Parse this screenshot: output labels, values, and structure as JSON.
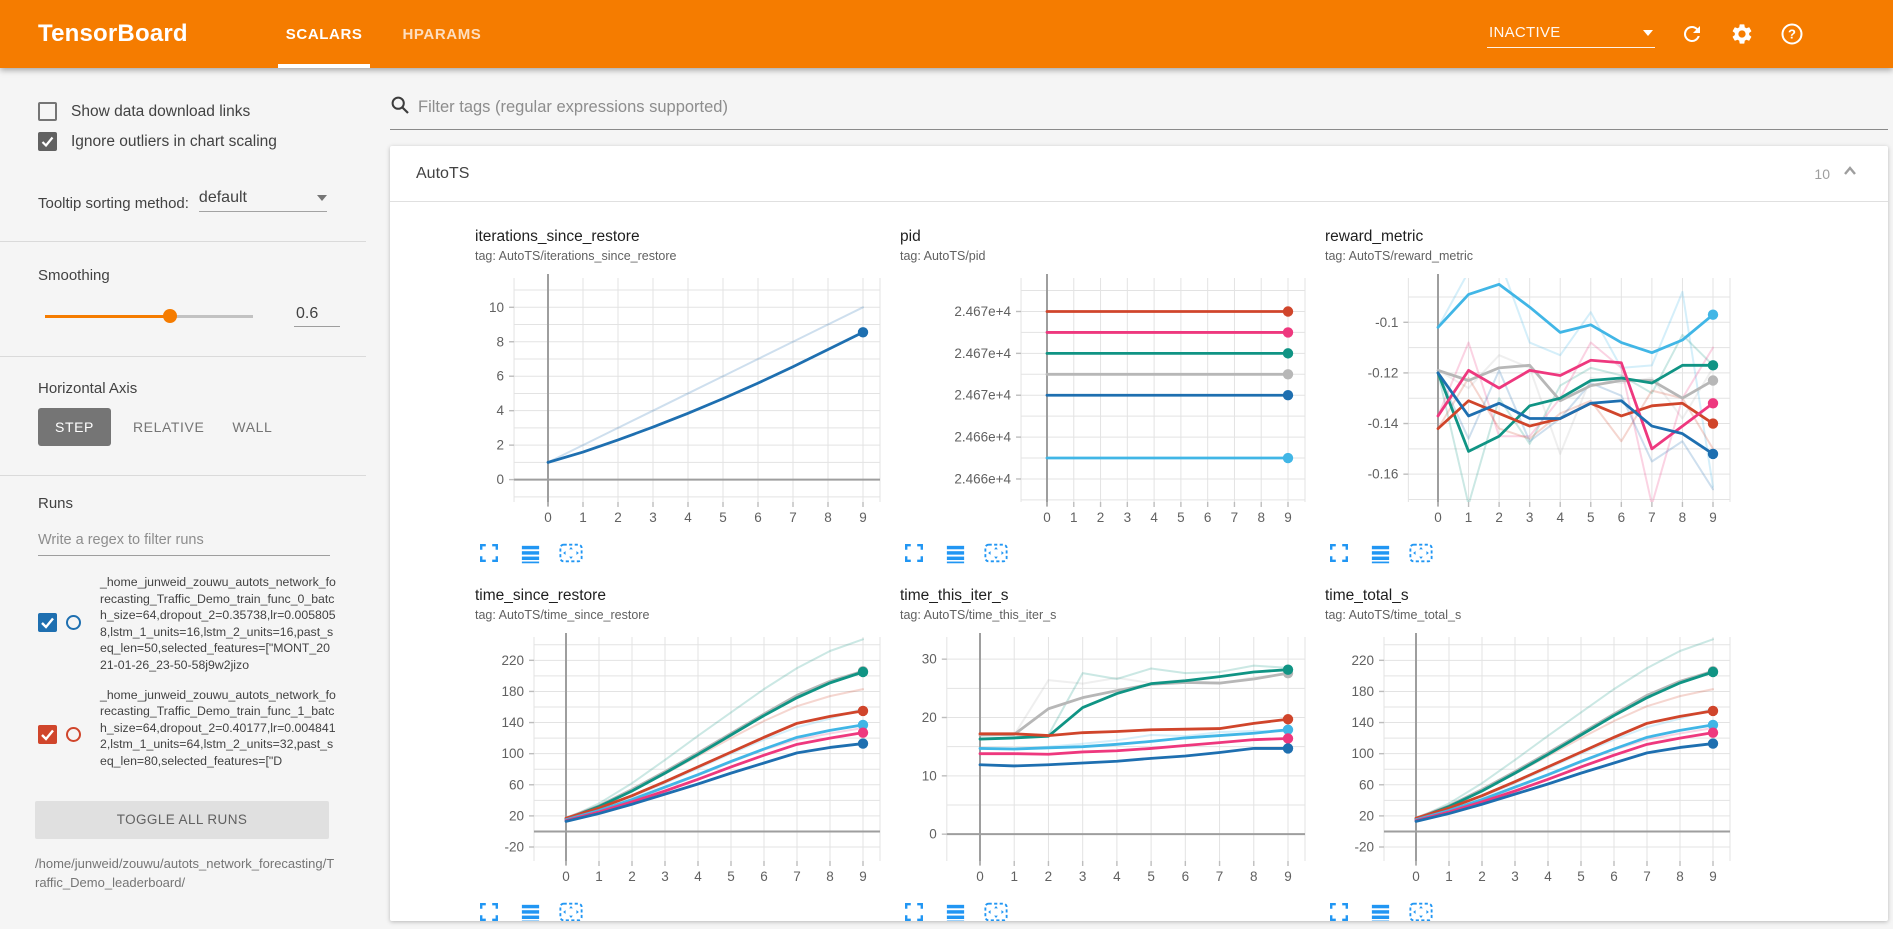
{
  "header": {
    "title": "TensorBoard",
    "tabs": [
      {
        "label": "SCALARS",
        "active": true
      },
      {
        "label": "HPARAMS",
        "active": false
      }
    ],
    "status_dropdown": "INACTIVE",
    "icons": [
      "refresh-icon",
      "gear-icon",
      "help-icon"
    ]
  },
  "sidebar": {
    "checkboxes": [
      {
        "label": "Show data download links",
        "checked": false
      },
      {
        "label": "Ignore outliers in chart scaling",
        "checked": true
      }
    ],
    "tooltip_sorting": {
      "label": "Tooltip sorting method:",
      "value": "default"
    },
    "smoothing": {
      "label": "Smoothing",
      "value": "0.6",
      "percent": 60
    },
    "horizontal_axis": {
      "label": "Horizontal Axis",
      "options": [
        "STEP",
        "RELATIVE",
        "WALL"
      ],
      "selected": "STEP"
    },
    "runs": {
      "label": "Runs",
      "filter_placeholder": "Write a regex to filter runs",
      "items": [
        {
          "color": "#1e6fb0",
          "checked": true,
          "name": "_home_junweid_zouwu_autots_network_forecasting_Traffic_Demo_train_func_0_batch_size=64,dropout_2=0.35738,lr=0.0058058,lstm_1_units=16,lstm_2_units=16,past_seq_len=50,selected_features=[\"MONT_2021-01-26_23-50-58j9w2jizo"
        },
        {
          "color": "#d0452b",
          "checked": true,
          "name": "_home_junweid_zouwu_autots_network_forecasting_Traffic_Demo_train_func_1_batch_size=64,dropout_2=0.40177,lr=0.0048412,lstm_1_units=64,lstm_2_units=32,past_seq_len=80,selected_features=[\"D"
        }
      ],
      "toggle_all_label": "TOGGLE ALL RUNS",
      "log_dir": "/home/junweid/zouwu/autots_network_forecasting/Traffic_Demo_leaderboard/"
    }
  },
  "main": {
    "filter_placeholder": "Filter tags (regular expressions supported)",
    "section": {
      "title": "AutoTS",
      "count": "10"
    }
  },
  "colors": {
    "accent": "#f57c00",
    "toolbar_icon": "#2196f3",
    "runs": {
      "red": "#d0452b",
      "pink": "#ee387e",
      "teal": "#109484",
      "gray": "#b7b7b7",
      "blue": "#1e6fb0",
      "sky": "#41b6e6"
    }
  },
  "chart_data": [
    {
      "type": "line",
      "name": "iterations_since_restore",
      "tag_line": "tag: AutoTS/iterations_since_restore",
      "x": [
        0,
        1,
        2,
        3,
        4,
        5,
        6,
        7,
        8,
        9
      ],
      "axis_x": 73,
      "ylim": [
        -1.3,
        11.7
      ],
      "grid_step": 1,
      "zero_line": true,
      "yticks": [
        {
          "v": 0,
          "l": "0"
        },
        {
          "v": 2,
          "l": "2"
        },
        {
          "v": 4,
          "l": "4"
        },
        {
          "v": 6,
          "l": "6"
        },
        {
          "v": 8,
          "l": "8"
        },
        {
          "v": 10,
          "l": "10"
        }
      ],
      "series": [
        {
          "color": "blue",
          "faint": true,
          "values": [
            1,
            2,
            3,
            4,
            5,
            6,
            7,
            8,
            9,
            10
          ]
        },
        {
          "color": "blue",
          "dot": true,
          "values": [
            1,
            1.6,
            2.3,
            3.05,
            3.85,
            4.7,
            5.6,
            6.55,
            7.55,
            8.55
          ]
        }
      ]
    },
    {
      "type": "line",
      "name": "pid",
      "tag_line": "tag: AutoTS/pid",
      "x": [
        0,
        1,
        2,
        3,
        4,
        5,
        6,
        7,
        8,
        9
      ],
      "axis_x": 147,
      "ylim": [
        24660.9,
        24671.6
      ],
      "grid_step": 1,
      "zero_line": false,
      "yticks": [
        {
          "v": 24670,
          "l": "2.467e+4"
        },
        {
          "v": 24668,
          "l": "2.467e+4"
        },
        {
          "v": 24666,
          "l": "2.467e+4"
        },
        {
          "v": 24664,
          "l": "2.466e+4"
        },
        {
          "v": 24662,
          "l": "2.466e+4"
        }
      ],
      "series": [
        {
          "color": "red",
          "dot": true,
          "value": 24670
        },
        {
          "color": "pink",
          "dot": true,
          "value": 24669
        },
        {
          "color": "teal",
          "dot": true,
          "value": 24668
        },
        {
          "color": "gray",
          "dot": true,
          "value": 24667
        },
        {
          "color": "blue",
          "dot": true,
          "value": 24666
        },
        {
          "color": "sky",
          "dot": true,
          "value": 24663
        }
      ]
    },
    {
      "type": "line",
      "name": "reward_metric",
      "tag_line": "tag: AutoTS/reward_metric",
      "x": [
        0,
        1,
        2,
        3,
        4,
        5,
        6,
        7,
        8,
        9
      ],
      "axis_x": 113,
      "ylim": [
        -0.171,
        -0.0825
      ],
      "grid_step": 0.01,
      "zero_line": false,
      "yticks": [
        {
          "v": -0.1,
          "l": "-0.1"
        },
        {
          "v": -0.12,
          "l": "-0.12"
        },
        {
          "v": -0.14,
          "l": "-0.14"
        },
        {
          "v": -0.16,
          "l": "-0.16"
        }
      ],
      "series": [
        {
          "color": "sky",
          "faint": true,
          "values": [
            -0.102,
            -0.08,
            -0.075,
            -0.108,
            -0.113,
            -0.096,
            -0.118,
            -0.117,
            -0.088,
            -0.165
          ]
        },
        {
          "color": "teal",
          "faint": true,
          "values": [
            -0.12,
            -0.172,
            -0.13,
            -0.148,
            -0.125,
            -0.118,
            -0.121,
            -0.128,
            -0.105,
            -0.117
          ]
        },
        {
          "color": "gray",
          "faint": true,
          "values": [
            -0.119,
            -0.126,
            -0.113,
            -0.118,
            -0.152,
            -0.122,
            -0.124,
            -0.122,
            -0.138,
            -0.118
          ]
        },
        {
          "color": "pink",
          "faint": true,
          "values": [
            -0.137,
            -0.108,
            -0.145,
            -0.145,
            -0.13,
            -0.108,
            -0.118,
            -0.172,
            -0.13,
            -0.11
          ]
        },
        {
          "color": "red",
          "faint": true,
          "values": [
            -0.142,
            -0.122,
            -0.142,
            -0.146,
            -0.136,
            -0.131,
            -0.147,
            -0.127,
            -0.13,
            -0.15
          ]
        },
        {
          "color": "blue",
          "faint": true,
          "values": [
            -0.12,
            -0.146,
            -0.119,
            -0.147,
            -0.138,
            -0.124,
            -0.129,
            -0.155,
            -0.147,
            -0.166
          ]
        },
        {
          "color": "gray",
          "dot": true,
          "values": [
            -0.119,
            -0.123,
            -0.118,
            -0.117,
            -0.131,
            -0.125,
            -0.123,
            -0.123,
            -0.13,
            -0.123
          ]
        },
        {
          "color": "teal",
          "dot": true,
          "values": [
            -0.12,
            -0.151,
            -0.145,
            -0.133,
            -0.13,
            -0.123,
            -0.122,
            -0.124,
            -0.117,
            -0.117
          ]
        },
        {
          "color": "red",
          "dot": true,
          "values": [
            -0.142,
            -0.131,
            -0.136,
            -0.141,
            -0.138,
            -0.132,
            -0.137,
            -0.133,
            -0.132,
            -0.14
          ]
        },
        {
          "color": "pink",
          "dot": true,
          "values": [
            -0.137,
            -0.119,
            -0.126,
            -0.119,
            -0.121,
            -0.115,
            -0.116,
            -0.15,
            -0.141,
            -0.132
          ]
        },
        {
          "color": "blue",
          "dot": true,
          "values": [
            -0.12,
            -0.137,
            -0.132,
            -0.138,
            -0.138,
            -0.132,
            -0.131,
            -0.141,
            -0.144,
            -0.152
          ]
        },
        {
          "color": "sky",
          "dot": true,
          "values": [
            -0.102,
            -0.089,
            -0.085,
            -0.094,
            -0.104,
            -0.101,
            -0.108,
            -0.112,
            -0.107,
            -0.097
          ]
        }
      ]
    },
    {
      "type": "line",
      "name": "time_since_restore",
      "tag_line": "tag: AutoTS/time_since_restore",
      "x": [
        0,
        1,
        2,
        3,
        4,
        5,
        6,
        7,
        8,
        9
      ],
      "axis_x": 91,
      "ylim": [
        -38,
        250
      ],
      "grid_step": 20,
      "zero_line": true,
      "yticks": [
        {
          "v": -20,
          "l": "-20"
        },
        {
          "v": 20,
          "l": "20"
        },
        {
          "v": 60,
          "l": "60"
        },
        {
          "v": 100,
          "l": "100"
        },
        {
          "v": 140,
          "l": "140"
        },
        {
          "v": 180,
          "l": "180"
        },
        {
          "v": 220,
          "l": "220"
        }
      ],
      "series": [
        {
          "color": "teal",
          "faint": true,
          "values": [
            16,
            36,
            62,
            92,
            123,
            153,
            183,
            210,
            232,
            247
          ]
        },
        {
          "color": "red",
          "faint": true,
          "values": [
            17,
            32,
            52,
            74,
            97,
            120,
            142,
            161,
            174,
            183
          ]
        },
        {
          "color": "sky",
          "faint": true,
          "values": [
            15,
            28,
            44,
            62,
            81,
            100,
            118,
            134,
            145,
            158
          ]
        },
        {
          "color": "pink",
          "faint": true,
          "values": [
            14,
            26,
            40,
            56,
            72,
            89,
            105,
            118,
            126,
            133
          ]
        },
        {
          "color": "gray",
          "dot": true,
          "values": [
            17,
            33,
            54,
            77,
            101,
            126,
            151,
            175,
            193,
            206
          ]
        },
        {
          "color": "teal",
          "dot": true,
          "values": [
            16,
            32,
            52,
            75,
            99,
            124,
            149,
            172,
            191,
            205
          ]
        },
        {
          "color": "red",
          "dot": true,
          "values": [
            17,
            30,
            46,
            64,
            83,
            102,
            121,
            139,
            148,
            155
          ]
        },
        {
          "color": "sky",
          "dot": true,
          "values": [
            15,
            27,
            41,
            57,
            73,
            90,
            106,
            121,
            130,
            137
          ]
        },
        {
          "color": "pink",
          "dot": true,
          "values": [
            14,
            25,
            38,
            52,
            67,
            83,
            98,
            112,
            120,
            127
          ]
        },
        {
          "color": "blue",
          "dot": true,
          "values": [
            13,
            23,
            35,
            48,
            61,
            75,
            88,
            101,
            108,
            113
          ]
        }
      ]
    },
    {
      "type": "line",
      "name": "time_this_iter_s",
      "tag_line": "tag: AutoTS/time_this_iter_s",
      "x": [
        0,
        1,
        2,
        3,
        4,
        5,
        6,
        7,
        8,
        9
      ],
      "axis_x": 80,
      "ylim": [
        -4.6,
        33.8
      ],
      "grid_step": 5,
      "zero_line": true,
      "yticks": [
        {
          "v": 0,
          "l": "0"
        },
        {
          "v": 10,
          "l": "10"
        },
        {
          "v": 20,
          "l": "20"
        },
        {
          "v": 30,
          "l": "30"
        }
      ],
      "series": [
        {
          "color": "gray",
          "faint": true,
          "values": [
            17,
            17,
            26.4,
            25.8,
            26.8,
            25.9,
            26.5,
            25.8,
            26.9,
            27.4
          ]
        },
        {
          "color": "teal",
          "faint": true,
          "values": [
            16.3,
            16.6,
            17,
            27.6,
            26.6,
            28.4,
            27.6,
            27.8,
            28.9,
            28.5
          ]
        },
        {
          "color": "sky",
          "faint": true,
          "values": [
            14.7,
            14.5,
            15,
            15.5,
            16.1,
            17,
            16.8,
            17.5,
            17.7,
            17.6
          ]
        },
        {
          "color": "gray",
          "dot": true,
          "values": [
            17.0,
            17.1,
            21.5,
            23.4,
            24.6,
            25.7,
            26.0,
            25.9,
            26.6,
            27.6
          ]
        },
        {
          "color": "teal",
          "dot": true,
          "values": [
            16.3,
            16.5,
            16.8,
            21.7,
            24.1,
            25.8,
            26.3,
            27.0,
            27.8,
            28.2
          ]
        },
        {
          "color": "red",
          "dot": true,
          "values": [
            17.2,
            17.2,
            16.9,
            17.4,
            17.6,
            17.9,
            18.0,
            18.1,
            19.0,
            19.7
          ]
        },
        {
          "color": "sky",
          "dot": true,
          "values": [
            14.7,
            14.6,
            14.8,
            15.0,
            15.4,
            15.9,
            16.5,
            16.9,
            17.3,
            17.9
          ]
        },
        {
          "color": "pink",
          "dot": true,
          "values": [
            13.8,
            13.8,
            13.7,
            14.1,
            14.3,
            14.7,
            15.2,
            15.7,
            16.2,
            16.4
          ]
        },
        {
          "color": "blue",
          "dot": true,
          "values": [
            11.9,
            11.7,
            11.9,
            12.2,
            12.5,
            13.0,
            13.4,
            14.0,
            14.7,
            14.7
          ]
        }
      ]
    },
    {
      "type": "line",
      "name": "time_total_s",
      "tag_line": "tag: AutoTS/time_total_s",
      "x": [
        0,
        1,
        2,
        3,
        4,
        5,
        6,
        7,
        8,
        9
      ],
      "axis_x": 91,
      "ylim": [
        -38,
        250
      ],
      "grid_step": 20,
      "zero_line": true,
      "yticks": [
        {
          "v": -20,
          "l": "-20"
        },
        {
          "v": 20,
          "l": "20"
        },
        {
          "v": 60,
          "l": "60"
        },
        {
          "v": 100,
          "l": "100"
        },
        {
          "v": 140,
          "l": "140"
        },
        {
          "v": 180,
          "l": "180"
        },
        {
          "v": 220,
          "l": "220"
        }
      ],
      "series": [
        {
          "color": "teal",
          "faint": true,
          "values": [
            16,
            36,
            62,
            92,
            123,
            153,
            183,
            210,
            232,
            247
          ]
        },
        {
          "color": "red",
          "faint": true,
          "values": [
            17,
            32,
            52,
            74,
            97,
            120,
            142,
            161,
            174,
            183
          ]
        },
        {
          "color": "sky",
          "faint": true,
          "values": [
            15,
            28,
            44,
            62,
            81,
            100,
            118,
            134,
            145,
            158
          ]
        },
        {
          "color": "pink",
          "faint": true,
          "values": [
            14,
            26,
            40,
            56,
            72,
            89,
            105,
            118,
            126,
            133
          ]
        },
        {
          "color": "gray",
          "dot": true,
          "values": [
            17,
            33,
            54,
            77,
            101,
            126,
            151,
            175,
            193,
            206
          ]
        },
        {
          "color": "teal",
          "dot": true,
          "values": [
            16,
            32,
            52,
            75,
            99,
            124,
            149,
            172,
            191,
            205
          ]
        },
        {
          "color": "red",
          "dot": true,
          "values": [
            17,
            30,
            46,
            64,
            83,
            102,
            121,
            139,
            148,
            155
          ]
        },
        {
          "color": "sky",
          "dot": true,
          "values": [
            15,
            27,
            41,
            57,
            73,
            90,
            106,
            121,
            130,
            137
          ]
        },
        {
          "color": "pink",
          "dot": true,
          "values": [
            14,
            25,
            38,
            52,
            67,
            83,
            98,
            112,
            120,
            127
          ]
        },
        {
          "color": "blue",
          "dot": true,
          "values": [
            13,
            23,
            35,
            48,
            61,
            75,
            88,
            101,
            108,
            113
          ]
        }
      ]
    }
  ]
}
